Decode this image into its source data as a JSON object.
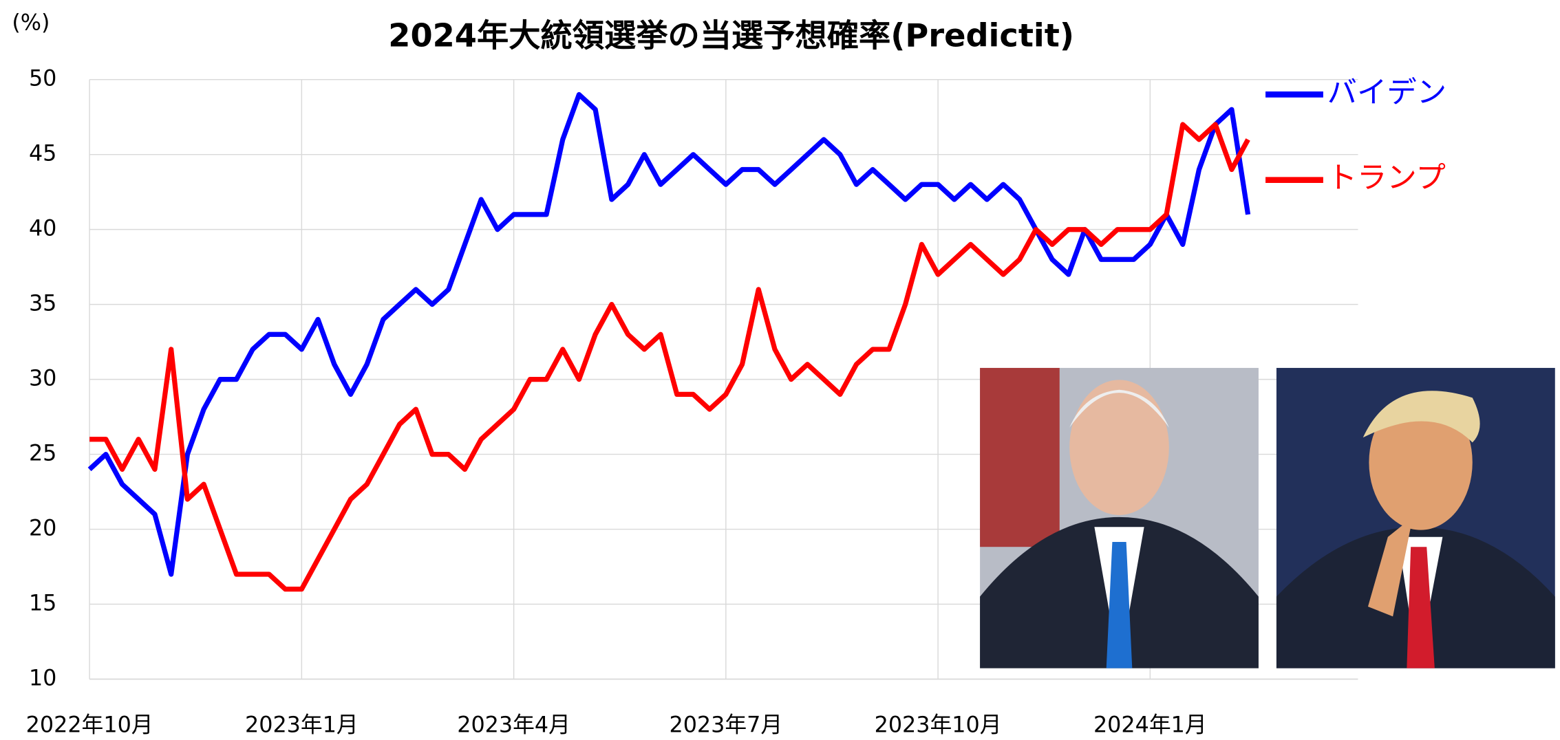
{
  "chart_data": {
    "type": "line",
    "title": "2024年大統領選挙の当選予想確率(Predictit)",
    "y_label": "(%)",
    "categories": [
      "2022年10月",
      null,
      null,
      null,
      null,
      null,
      null,
      null,
      null,
      null,
      null,
      null,
      null,
      "2023年1月",
      null,
      null,
      null,
      null,
      null,
      null,
      null,
      null,
      null,
      null,
      null,
      null,
      "2023年4月",
      null,
      null,
      null,
      null,
      null,
      null,
      null,
      null,
      null,
      null,
      null,
      null,
      "2023年7月",
      null,
      null,
      null,
      null,
      null,
      null,
      null,
      null,
      null,
      null,
      null,
      null,
      "2023年10月",
      null,
      null,
      null,
      null,
      null,
      null,
      null,
      null,
      null,
      null,
      null,
      null,
      "2024年1月",
      null,
      null,
      null,
      null,
      null,
      null
    ],
    "series": [
      {
        "name": "バイデン",
        "color": "#0000ff",
        "values": [
          24,
          25,
          23,
          22,
          21,
          17,
          25,
          28,
          30,
          30,
          32,
          33,
          33,
          32,
          34,
          31,
          29,
          31,
          34,
          35,
          36,
          35,
          36,
          39,
          42,
          40,
          41,
          41,
          41,
          46,
          49,
          48,
          42,
          43,
          45,
          43,
          44,
          45,
          44,
          43,
          44,
          44,
          43,
          44,
          45,
          46,
          45,
          43,
          44,
          43,
          42,
          43,
          43,
          42,
          43,
          42,
          43,
          42,
          40,
          38,
          37,
          40,
          38,
          38,
          38,
          39,
          41,
          39,
          44,
          47,
          48,
          41
        ]
      },
      {
        "name": "トランプ",
        "color": "#ff0000",
        "values": [
          26,
          26,
          24,
          26,
          24,
          32,
          22,
          23,
          20,
          17,
          17,
          17,
          16,
          16,
          18,
          20,
          22,
          23,
          25,
          27,
          28,
          25,
          25,
          24,
          26,
          27,
          28,
          30,
          30,
          32,
          30,
          33,
          35,
          33,
          32,
          33,
          29,
          29,
          28,
          29,
          31,
          36,
          32,
          30,
          31,
          30,
          29,
          31,
          32,
          32,
          35,
          39,
          37,
          38,
          39,
          38,
          37,
          38,
          40,
          39,
          40,
          40,
          39,
          40,
          40,
          40,
          41,
          47,
          46,
          47,
          44,
          46
        ]
      }
    ],
    "ylim": [
      10,
      50
    ],
    "yticks": [
      10,
      15,
      20,
      25,
      30,
      35,
      40,
      45,
      50
    ],
    "grid": true
  }
}
